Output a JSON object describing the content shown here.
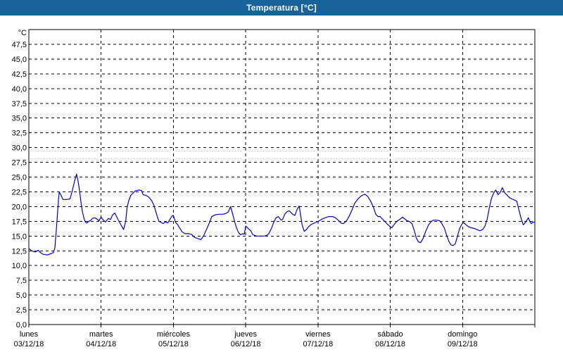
{
  "window": {
    "title": "Temperatura [°C]"
  },
  "colors": {
    "titlebar_bg": "#17629b",
    "titlebar_text": "#ffffff",
    "frame_border": "#17629b",
    "plot_background": "#ffffff",
    "grid_color": "#000000",
    "axis_color": "#000000",
    "label_color": "#000000",
    "series_line": "#0000C8"
  },
  "chart_data": {
    "type": "line",
    "title": "Temperatura [°C]",
    "legend_position": "none",
    "y_axis": {
      "unit_label": "°C",
      "min": 0,
      "max": 50,
      "tick_step": 2.5,
      "tick_labels": [
        "0,0",
        "2,5",
        "5,0",
        "7,5",
        "10,0",
        "12,5",
        "15,0",
        "17,5",
        "20,0",
        "22,5",
        "25,0",
        "27,5",
        "30,0",
        "32,5",
        "35,0",
        "37,5",
        "40,0",
        "42,5",
        "45,0",
        "47,5"
      ],
      "grid": "dashed"
    },
    "x_axis": {
      "unit": "days",
      "grid": "dashed",
      "days": [
        {
          "name": "lunes",
          "date": "03/12/18"
        },
        {
          "name": "martes",
          "date": "04/12/18"
        },
        {
          "name": "miércoles",
          "date": "05/12/18"
        },
        {
          "name": "jueves",
          "date": "06/12/18"
        },
        {
          "name": "viernes",
          "date": "07/12/18"
        },
        {
          "name": "sábado",
          "date": "08/12/18"
        },
        {
          "name": "domingo",
          "date": "09/12/18"
        }
      ]
    },
    "series": [
      {
        "name": "Temperatura",
        "color": "#0000C8",
        "points": [
          [
            0.0,
            12.9
          ],
          [
            0.04,
            12.5
          ],
          [
            0.09,
            12.3
          ],
          [
            0.13,
            12.6
          ],
          [
            0.16,
            12.2
          ],
          [
            0.2,
            11.9
          ],
          [
            0.26,
            11.8
          ],
          [
            0.3,
            12.0
          ],
          [
            0.34,
            12.2
          ],
          [
            0.36,
            13.0
          ],
          [
            0.38,
            16.0
          ],
          [
            0.4,
            19.5
          ],
          [
            0.42,
            22.5
          ],
          [
            0.45,
            21.8
          ],
          [
            0.47,
            21.2
          ],
          [
            0.53,
            21.2
          ],
          [
            0.57,
            21.3
          ],
          [
            0.6,
            22.6
          ],
          [
            0.63,
            24.2
          ],
          [
            0.66,
            25.5
          ],
          [
            0.68,
            24.4
          ],
          [
            0.7,
            22.8
          ],
          [
            0.72,
            20.8
          ],
          [
            0.74,
            19.2
          ],
          [
            0.76,
            18.1
          ],
          [
            0.78,
            17.4
          ],
          [
            0.8,
            17.2
          ],
          [
            0.83,
            17.5
          ],
          [
            0.86,
            17.7
          ],
          [
            0.88,
            18.0
          ],
          [
            0.91,
            18.1
          ],
          [
            0.94,
            17.9
          ],
          [
            0.97,
            17.6
          ],
          [
            1.0,
            18.2
          ],
          [
            1.03,
            17.7
          ],
          [
            1.06,
            17.4
          ],
          [
            1.1,
            18.0
          ],
          [
            1.13,
            17.8
          ],
          [
            1.16,
            18.6
          ],
          [
            1.19,
            18.9
          ],
          [
            1.23,
            17.9
          ],
          [
            1.27,
            17.0
          ],
          [
            1.31,
            16.1
          ],
          [
            1.34,
            17.5
          ],
          [
            1.36,
            19.9
          ],
          [
            1.38,
            20.9
          ],
          [
            1.41,
            21.9
          ],
          [
            1.45,
            22.4
          ],
          [
            1.48,
            22.7
          ],
          [
            1.53,
            22.8
          ],
          [
            1.56,
            22.7
          ],
          [
            1.58,
            22.0
          ],
          [
            1.62,
            21.9
          ],
          [
            1.66,
            21.6
          ],
          [
            1.7,
            21.0
          ],
          [
            1.73,
            20.2
          ],
          [
            1.76,
            19.0
          ],
          [
            1.78,
            18.2
          ],
          [
            1.8,
            17.5
          ],
          [
            1.83,
            17.3
          ],
          [
            1.86,
            17.1
          ],
          [
            1.89,
            17.4
          ],
          [
            1.92,
            17.2
          ],
          [
            1.96,
            18.0
          ],
          [
            1.98,
            18.4
          ],
          [
            2.0,
            18.5
          ],
          [
            2.03,
            17.3
          ],
          [
            2.06,
            16.9
          ],
          [
            2.08,
            16.5
          ],
          [
            2.12,
            15.7
          ],
          [
            2.16,
            15.4
          ],
          [
            2.2,
            15.4
          ],
          [
            2.25,
            15.3
          ],
          [
            2.29,
            14.8
          ],
          [
            2.33,
            14.6
          ],
          [
            2.38,
            14.4
          ],
          [
            2.42,
            15.1
          ],
          [
            2.46,
            16.2
          ],
          [
            2.5,
            17.3
          ],
          [
            2.53,
            18.3
          ],
          [
            2.58,
            18.6
          ],
          [
            2.63,
            18.7
          ],
          [
            2.68,
            18.7
          ],
          [
            2.72,
            18.8
          ],
          [
            2.76,
            19.1
          ],
          [
            2.79,
            20.0
          ],
          [
            2.82,
            18.7
          ],
          [
            2.85,
            17.3
          ],
          [
            2.87,
            16.5
          ],
          [
            2.9,
            15.6
          ],
          [
            2.93,
            15.2
          ],
          [
            2.96,
            15.4
          ],
          [
            2.98,
            15.3
          ],
          [
            3.0,
            16.7
          ],
          [
            3.04,
            16.2
          ],
          [
            3.07,
            15.9
          ],
          [
            3.1,
            15.2
          ],
          [
            3.15,
            15.0
          ],
          [
            3.2,
            15.0
          ],
          [
            3.25,
            15.0
          ],
          [
            3.29,
            15.1
          ],
          [
            3.32,
            15.4
          ],
          [
            3.36,
            16.4
          ],
          [
            3.39,
            17.4
          ],
          [
            3.42,
            18.1
          ],
          [
            3.45,
            18.3
          ],
          [
            3.49,
            17.7
          ],
          [
            3.51,
            17.8
          ],
          [
            3.54,
            18.7
          ],
          [
            3.57,
            19.1
          ],
          [
            3.6,
            19.3
          ],
          [
            3.65,
            18.7
          ],
          [
            3.68,
            18.5
          ],
          [
            3.71,
            19.5
          ],
          [
            3.74,
            20.1
          ],
          [
            3.76,
            18.5
          ],
          [
            3.78,
            16.9
          ],
          [
            3.81,
            15.8
          ],
          [
            3.84,
            16.1
          ],
          [
            3.87,
            16.6
          ],
          [
            3.91,
            17.0
          ],
          [
            3.95,
            17.2
          ],
          [
            3.98,
            17.4
          ],
          [
            4.02,
            17.6
          ],
          [
            4.06,
            17.9
          ],
          [
            4.1,
            18.1
          ],
          [
            4.15,
            18.3
          ],
          [
            4.2,
            18.3
          ],
          [
            4.24,
            18.1
          ],
          [
            4.28,
            17.7
          ],
          [
            4.32,
            17.2
          ],
          [
            4.35,
            17.1
          ],
          [
            4.39,
            17.5
          ],
          [
            4.43,
            18.3
          ],
          [
            4.47,
            19.4
          ],
          [
            4.51,
            20.6
          ],
          [
            4.56,
            21.4
          ],
          [
            4.61,
            21.9
          ],
          [
            4.65,
            22.1
          ],
          [
            4.69,
            21.7
          ],
          [
            4.73,
            20.9
          ],
          [
            4.77,
            19.8
          ],
          [
            4.8,
            18.7
          ],
          [
            4.83,
            18.3
          ],
          [
            4.86,
            18.3
          ],
          [
            4.89,
            17.9
          ],
          [
            4.93,
            17.4
          ],
          [
            4.96,
            17.0
          ],
          [
            4.99,
            16.7
          ],
          [
            5.02,
            16.4
          ],
          [
            5.05,
            16.9
          ],
          [
            5.09,
            17.5
          ],
          [
            5.13,
            17.8
          ],
          [
            5.17,
            18.2
          ],
          [
            5.2,
            17.9
          ],
          [
            5.23,
            17.6
          ],
          [
            5.26,
            17.5
          ],
          [
            5.3,
            17.1
          ],
          [
            5.33,
            16.0
          ],
          [
            5.36,
            14.7
          ],
          [
            5.39,
            14.0
          ],
          [
            5.42,
            13.9
          ],
          [
            5.45,
            14.5
          ],
          [
            5.49,
            15.8
          ],
          [
            5.53,
            16.9
          ],
          [
            5.57,
            17.5
          ],
          [
            5.6,
            17.7
          ],
          [
            5.64,
            17.7
          ],
          [
            5.68,
            17.6
          ],
          [
            5.71,
            17.2
          ],
          [
            5.75,
            16.3
          ],
          [
            5.78,
            15.1
          ],
          [
            5.81,
            14.1
          ],
          [
            5.84,
            13.5
          ],
          [
            5.87,
            13.4
          ],
          [
            5.9,
            13.7
          ],
          [
            5.93,
            15.0
          ],
          [
            5.96,
            16.3
          ],
          [
            5.99,
            17.0
          ],
          [
            6.01,
            17.3
          ],
          [
            6.04,
            17.0
          ],
          [
            6.08,
            16.6
          ],
          [
            6.12,
            16.4
          ],
          [
            6.16,
            16.3
          ],
          [
            6.2,
            16.1
          ],
          [
            6.24,
            15.9
          ],
          [
            6.28,
            16.1
          ],
          [
            6.31,
            16.7
          ],
          [
            6.34,
            17.8
          ],
          [
            6.37,
            19.8
          ],
          [
            6.4,
            21.4
          ],
          [
            6.43,
            22.3
          ],
          [
            6.46,
            22.8
          ],
          [
            6.49,
            22.0
          ],
          [
            6.52,
            22.4
          ],
          [
            6.55,
            23.2
          ],
          [
            6.58,
            22.4
          ],
          [
            6.61,
            22.0
          ],
          [
            6.65,
            21.5
          ],
          [
            6.68,
            21.3
          ],
          [
            6.72,
            21.1
          ],
          [
            6.75,
            20.9
          ],
          [
            6.78,
            19.4
          ],
          [
            6.81,
            18.0
          ],
          [
            6.84,
            16.9
          ],
          [
            6.87,
            17.3
          ],
          [
            6.91,
            18.1
          ],
          [
            6.93,
            17.5
          ],
          [
            6.95,
            17.1
          ],
          [
            6.97,
            17.3
          ],
          [
            7.0,
            17.4
          ]
        ]
      }
    ]
  }
}
